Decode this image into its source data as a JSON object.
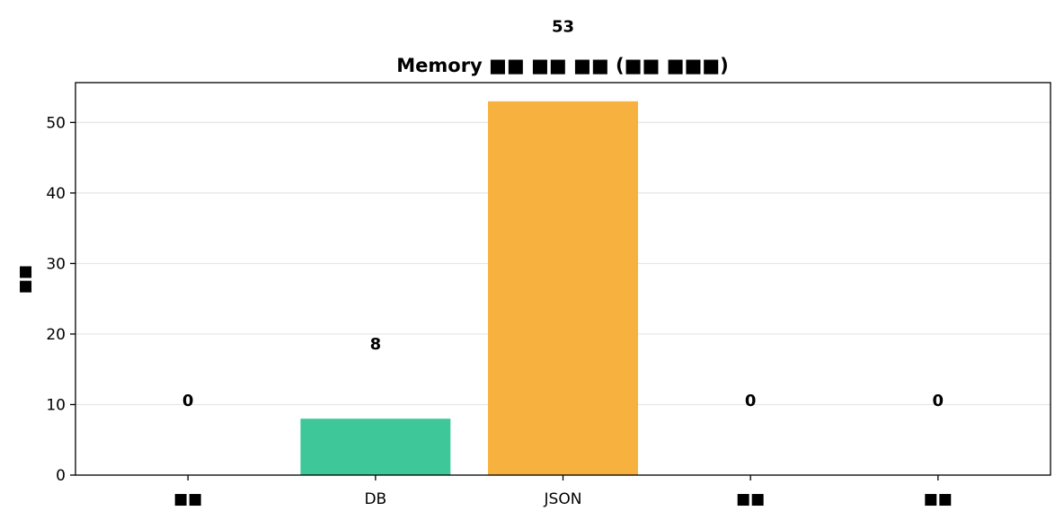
{
  "chart_data": {
    "type": "bar",
    "title": "Memory ■■ ■■ ■■ (■■ ■■■)",
    "xlabel": "",
    "ylabel": "■■",
    "categories": [
      "■■",
      "DB",
      "JSON",
      "■■",
      "■■"
    ],
    "values": [
      0,
      8,
      53,
      0,
      0
    ],
    "value_labels": [
      "0",
      "8",
      "53",
      "0",
      "0"
    ],
    "colors": [
      "#3ec89a",
      "#3ec89a",
      "#f7b13e",
      "#3ec89a",
      "#3ec89a"
    ],
    "ylim": [
      0,
      55.65
    ],
    "yticks": [
      0,
      10,
      20,
      30,
      40,
      50
    ],
    "grid": "y",
    "legend": "none"
  }
}
